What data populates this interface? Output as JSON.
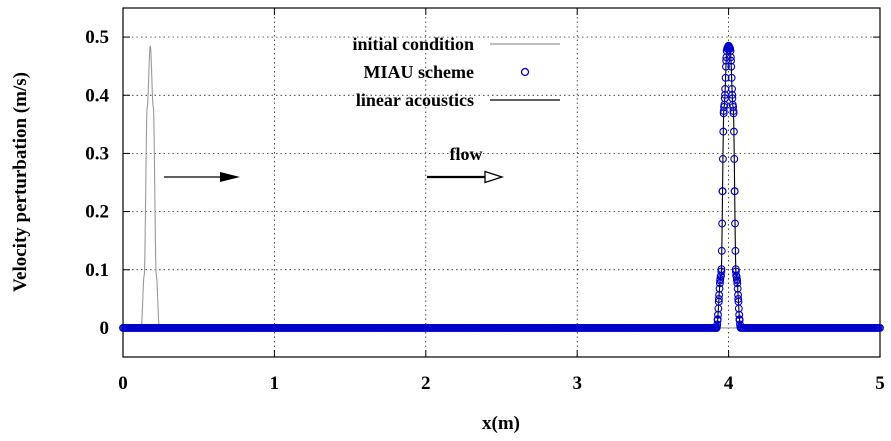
{
  "chart_data": {
    "type": "line",
    "xlabel": "x(m)",
    "ylabel": "Velocity perturbation (m/s)",
    "xlim": [
      0,
      5
    ],
    "ylim": [
      -0.05,
      0.55
    ],
    "xticks": [
      "0",
      "1",
      "2",
      "3",
      "4",
      "5"
    ],
    "yticks": [
      "0",
      "0.1",
      "0.2",
      "0.3",
      "0.4",
      "0.5"
    ],
    "grid": true,
    "legend_position": "top-center",
    "legend": [
      "initial condition",
      "MIAU scheme",
      "linear acoustics"
    ],
    "series": [
      {
        "name": "initial condition",
        "style": "line",
        "color": "#999999",
        "x": [
          0.12,
          0.14,
          0.16,
          0.18,
          0.2,
          0.22,
          0.24,
          0.26
        ],
        "y": [
          0.0,
          0.09,
          0.38,
          0.485,
          0.38,
          0.09,
          0.0,
          0.0
        ]
      },
      {
        "name": "MIAU scheme",
        "style": "markers",
        "color": "#0000cc",
        "x": [
          3.92,
          3.95,
          3.97,
          3.99,
          4.0,
          4.01,
          4.03,
          4.05,
          4.08
        ],
        "y": [
          0.0,
          0.09,
          0.38,
          0.48,
          0.485,
          0.48,
          0.38,
          0.09,
          0.0
        ]
      },
      {
        "name": "linear acoustics",
        "style": "line",
        "color": "#000000",
        "x": [
          3.92,
          3.95,
          3.97,
          3.99,
          4.0,
          4.01,
          4.03,
          4.05,
          4.08
        ],
        "y": [
          0.0,
          0.09,
          0.38,
          0.48,
          0.485,
          0.48,
          0.38,
          0.09,
          0.0
        ]
      }
    ],
    "annotations": [
      "flow"
    ]
  }
}
